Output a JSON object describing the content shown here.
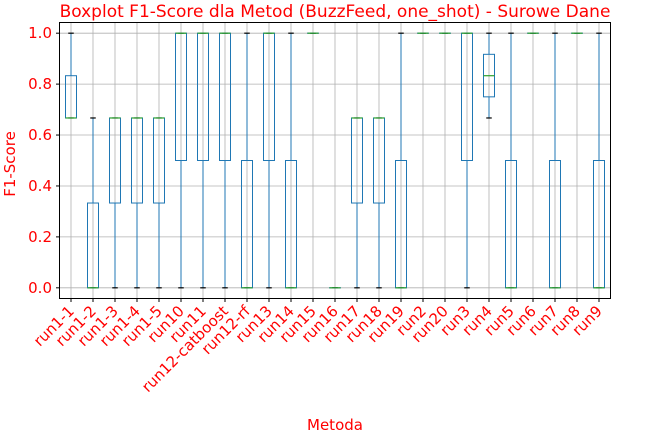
{
  "chart_data": {
    "type": "boxplot",
    "title": "Boxplot F1-Score dla Metod (BuzzFeed, one_shot) - Surowe Dane",
    "xlabel": "Metoda",
    "ylabel": "F1-Score",
    "ylim": [
      -0.04,
      1.04
    ],
    "yticks": [
      "0.0",
      "0.2",
      "0.4",
      "0.6",
      "0.8",
      "1.0"
    ],
    "grid": true,
    "colors": {
      "text": "#ff0000",
      "box": "#1f77b4",
      "median": "#2ca02c",
      "grid": "#b0b0b0",
      "axis": "#000000",
      "outlier": "#000000"
    },
    "categories": [
      "run1-1",
      "run1-2",
      "run1-3",
      "run1-4",
      "run1-5",
      "run10",
      "run11",
      "run12-catboost",
      "run12-rf",
      "run13",
      "run14",
      "run15",
      "run16",
      "run17",
      "run18",
      "run19",
      "run2",
      "run20",
      "run3",
      "run4",
      "run5",
      "run6",
      "run7",
      "run8",
      "run9"
    ],
    "boxes": [
      {
        "whislo": 0.667,
        "q1": 0.667,
        "med": 0.667,
        "q3": 0.833,
        "whishi": 1.0
      },
      {
        "whislo": 0.0,
        "q1": 0.0,
        "med": 0.0,
        "q3": 0.333,
        "whishi": 0.667
      },
      {
        "whislo": 0.0,
        "q1": 0.333,
        "med": 0.667,
        "q3": 0.667,
        "whishi": 0.667
      },
      {
        "whislo": 0.0,
        "q1": 0.333,
        "med": 0.667,
        "q3": 0.667,
        "whishi": 0.667
      },
      {
        "whislo": 0.0,
        "q1": 0.333,
        "med": 0.667,
        "q3": 0.667,
        "whishi": 0.667
      },
      {
        "whislo": 0.0,
        "q1": 0.5,
        "med": 1.0,
        "q3": 1.0,
        "whishi": 1.0
      },
      {
        "whislo": 0.0,
        "q1": 0.5,
        "med": 1.0,
        "q3": 1.0,
        "whishi": 1.0
      },
      {
        "whislo": 0.0,
        "q1": 0.5,
        "med": 1.0,
        "q3": 1.0,
        "whishi": 1.0
      },
      {
        "whislo": 0.0,
        "q1": 0.0,
        "med": 0.0,
        "q3": 0.5,
        "whishi": 1.0
      },
      {
        "whislo": 0.0,
        "q1": 0.5,
        "med": 1.0,
        "q3": 1.0,
        "whishi": 1.0
      },
      {
        "whislo": 0.0,
        "q1": 0.0,
        "med": 0.0,
        "q3": 0.5,
        "whishi": 1.0
      },
      {
        "whislo": 1.0,
        "q1": 1.0,
        "med": 1.0,
        "q3": 1.0,
        "whishi": 1.0
      },
      {
        "whislo": 0.0,
        "q1": 0.0,
        "med": 0.0,
        "q3": 0.0,
        "whishi": 0.0
      },
      {
        "whislo": 0.0,
        "q1": 0.333,
        "med": 0.667,
        "q3": 0.667,
        "whishi": 0.667
      },
      {
        "whislo": 0.0,
        "q1": 0.333,
        "med": 0.667,
        "q3": 0.667,
        "whishi": 0.667
      },
      {
        "whislo": 0.0,
        "q1": 0.0,
        "med": 0.0,
        "q3": 0.5,
        "whishi": 1.0
      },
      {
        "whislo": 1.0,
        "q1": 1.0,
        "med": 1.0,
        "q3": 1.0,
        "whishi": 1.0
      },
      {
        "whislo": 1.0,
        "q1": 1.0,
        "med": 1.0,
        "q3": 1.0,
        "whishi": 1.0
      },
      {
        "whislo": 0.0,
        "q1": 0.5,
        "med": 1.0,
        "q3": 1.0,
        "whishi": 1.0
      },
      {
        "whislo": 0.667,
        "q1": 0.75,
        "med": 0.833,
        "q3": 0.917,
        "whishi": 1.0
      },
      {
        "whislo": 0.0,
        "q1": 0.0,
        "med": 0.0,
        "q3": 0.5,
        "whishi": 1.0
      },
      {
        "whislo": 1.0,
        "q1": 1.0,
        "med": 1.0,
        "q3": 1.0,
        "whishi": 1.0
      },
      {
        "whislo": 0.0,
        "q1": 0.0,
        "med": 0.0,
        "q3": 0.5,
        "whishi": 1.0
      },
      {
        "whislo": 1.0,
        "q1": 1.0,
        "med": 1.0,
        "q3": 1.0,
        "whishi": 1.0
      },
      {
        "whislo": 0.0,
        "q1": 0.0,
        "med": 0.0,
        "q3": 0.5,
        "whishi": 1.0
      }
    ]
  }
}
